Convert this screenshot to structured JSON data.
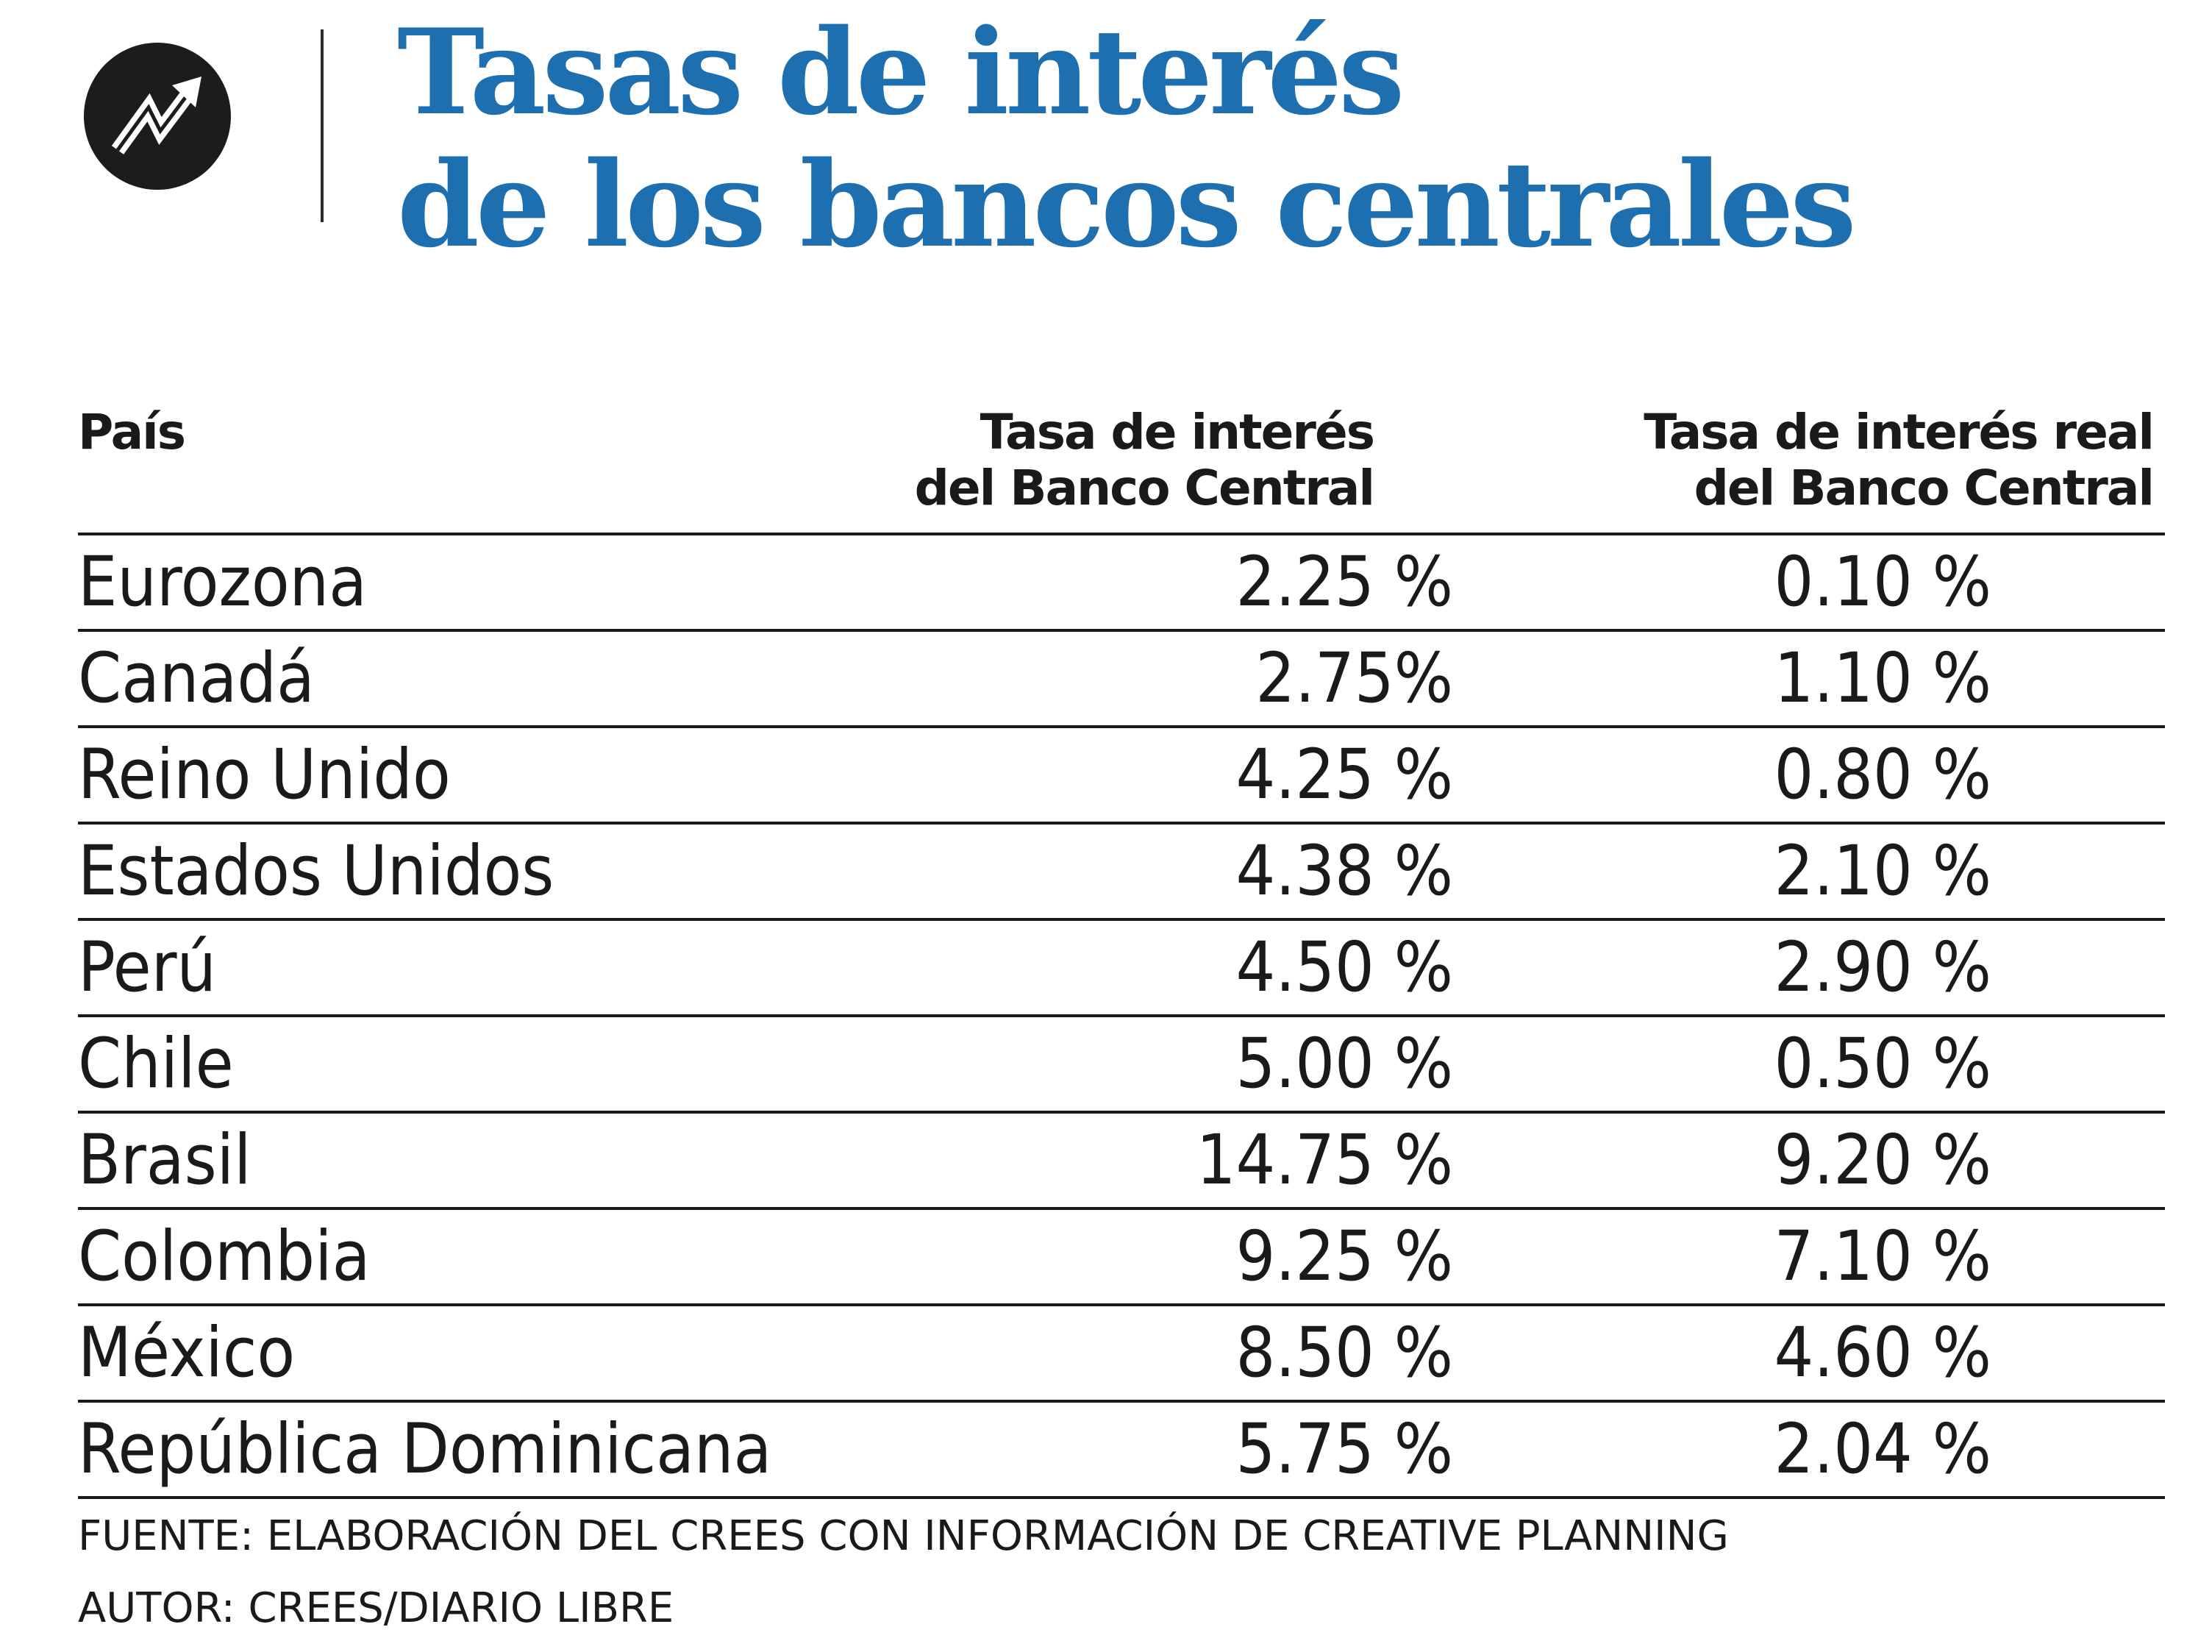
{
  "header": {
    "icon": "trend-up-arrow-icon",
    "title_line1": "Tasas de interés",
    "title_line2": "de los bancos centrales",
    "title_color": "#1d6fb0"
  },
  "table": {
    "headers": {
      "country": "País",
      "rate_line1": "Tasa de interés",
      "rate_line2": "del Banco Central",
      "real_line1": "Tasa de interés real",
      "real_line2": "del Banco Central"
    },
    "rows": [
      {
        "country": "Eurozona",
        "rate": "2.25 %",
        "real": "0.10 %"
      },
      {
        "country": "Canadá",
        "rate": "2.75%",
        "real": "1.10 %"
      },
      {
        "country": "Reino Unido",
        "rate": "4.25 %",
        "real": "0.80 %"
      },
      {
        "country": "Estados Unidos",
        "rate": "4.38 %",
        "real": "2.10 %"
      },
      {
        "country": "Perú",
        "rate": "4.50 %",
        "real": "2.90 %"
      },
      {
        "country": "Chile",
        "rate": "5.00 %",
        "real": "0.50 %"
      },
      {
        "country": "Brasil",
        "rate": "14.75 %",
        "real": "9.20 %"
      },
      {
        "country": "Colombia",
        "rate": "9.25 %",
        "real": "7.10 %"
      },
      {
        "country": "México",
        "rate": "8.50 %",
        "real": "4.60 %"
      },
      {
        "country": "República Dominicana",
        "rate": "5.75 %",
        "real": "2.04 %"
      }
    ]
  },
  "footer": {
    "source": "FUENTE: ELABORACIÓN DEL CREES CON INFORMACIÓN DE CREATIVE PLANNING",
    "author": "AUTOR: CREES/DIARIO LIBRE"
  }
}
